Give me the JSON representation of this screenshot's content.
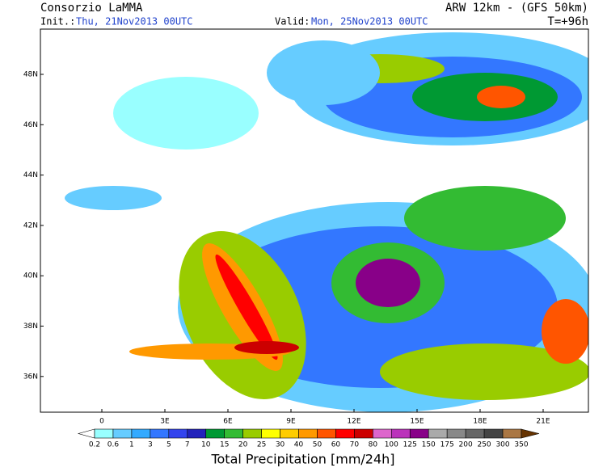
{
  "header": {
    "title": "Consorzio LaMMA",
    "model": "ARW 12km - (GFS 50km)",
    "init_label": "Init.:",
    "init_value": "Thu, 21Nov2013 00UTC",
    "valid_label": "Valid:",
    "valid_value": "Mon, 25Nov2013 00UTC",
    "lead": "T=+96h"
  },
  "map": {
    "lat_labels": [
      "48N",
      "46N",
      "44N",
      "42N",
      "40N",
      "38N",
      "36N"
    ],
    "lon_labels": [
      "0",
      "3E",
      "6E",
      "9E",
      "12E",
      "15E",
      "18E",
      "21E"
    ]
  },
  "legend": {
    "title": "Total Precipitation [mm/24h]",
    "labels": [
      0.2,
      0.6,
      1,
      3,
      5,
      7,
      10,
      15,
      20,
      25,
      30,
      40,
      50,
      60,
      70,
      80,
      100,
      125,
      150,
      175,
      200,
      250,
      300,
      350
    ],
    "colors": [
      "#ffffff",
      "#99ffff",
      "#66ccff",
      "#33aaff",
      "#3377ff",
      "#3344ee",
      "#2222bb",
      "#009933",
      "#33bb33",
      "#99cc00",
      "#ffff00",
      "#ffcc00",
      "#ff9900",
      "#ff5500",
      "#ff0000",
      "#cc0000",
      "#dd66cc",
      "#bb33bb",
      "#880088",
      "#aaaaaa",
      "#888888",
      "#666666",
      "#444444",
      "#aa7744",
      "#884422",
      "#663300"
    ]
  }
}
